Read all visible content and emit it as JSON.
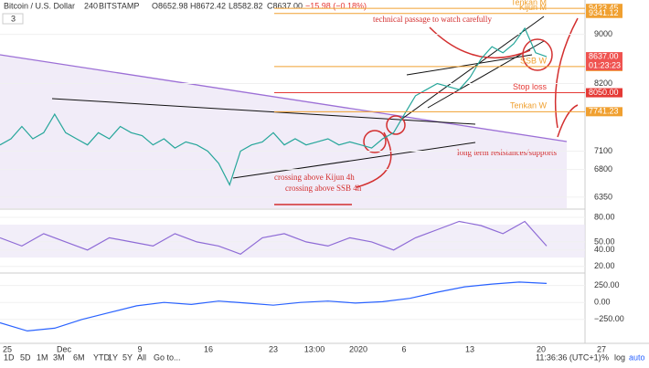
{
  "header": {
    "symbol": "Bitcoin / U.S. Dollar",
    "interval": "240",
    "exchange": "BITSTAMP",
    "open": "O8652.98",
    "high": "H8672.42",
    "low": "L8582.82",
    "close": "C8637.00",
    "change": "−15.98 (−0.18%)",
    "indicator_count": "3"
  },
  "chart_data": [
    {
      "type": "line",
      "series": [
        {
          "name": "BTCUSD",
          "color": "#26a69a",
          "values": [
            7200,
            7300,
            7500,
            7300,
            7400,
            7700,
            7400,
            7300,
            7200,
            7400,
            7300,
            7500,
            7400,
            7350,
            7200,
            7300,
            7150,
            7250,
            7200,
            7100,
            6900,
            6550,
            7100,
            7200,
            7250,
            7400,
            7200,
            7300,
            7200,
            7250,
            7300,
            7200,
            7250,
            7200,
            7150,
            7300,
            7400,
            7700,
            8000,
            8100,
            8200,
            8150,
            8100,
            8300,
            8600,
            8800,
            8700,
            8850,
            9100,
            8700,
            8637
          ]
        }
      ],
      "ylim": [
        6170,
        9560
      ],
      "yticks": [
        6350,
        6800,
        7100,
        8200,
        9000
      ],
      "levels": [
        {
          "name": "Tenkan M",
          "value": 9423.45,
          "color": "#f0a030"
        },
        {
          "name": "Kijun M",
          "value": 9341.12,
          "color": "#f0a030"
        },
        {
          "name": "SSB W",
          "value": 8476.29,
          "color": "#f0a030"
        },
        {
          "name": "Stop loss",
          "value": {
            "value": 8050,
            "label": "8050.00"
          },
          "color": "#e53935"
        },
        {
          "name": "Tenkan W",
          "value": 7741.23,
          "color": "#f0a030"
        }
      ],
      "last_price": {
        "value": 8637,
        "label": "8637.00"
      },
      "countdown": "01:23:23",
      "annotations": [
        "technical passage to watch carefully",
        "crossing above Kijun 4h",
        "crossing above SSB 4h",
        "long term resistances/supports"
      ],
      "x_labels": [
        "25",
        "Dec",
        "9",
        "16",
        "23",
        "13:00",
        "2020",
        "6",
        "13",
        "20",
        "27"
      ]
    },
    {
      "type": "line",
      "series": [
        {
          "name": "RSI",
          "color": "#8e6bd6",
          "values": [
            55,
            45,
            60,
            50,
            40,
            55,
            50,
            45,
            60,
            50,
            45,
            35,
            55,
            60,
            50,
            45,
            55,
            50,
            40,
            55,
            65,
            75,
            70,
            60,
            75,
            45
          ]
        }
      ],
      "ylim": [
        13,
        89
      ],
      "yticks": [
        {
          "value": 20,
          "label": "20.00"
        },
        {
          "value": 40,
          "label": "40.00"
        },
        {
          "value": 50,
          "label": "50.00"
        },
        {
          "value": 80,
          "label": "80.00"
        }
      ]
    },
    {
      "type": "line",
      "series": [
        {
          "name": "MACD",
          "color": "#2962ff",
          "values": [
            -300,
            -420,
            -380,
            -250,
            -150,
            -50,
            0,
            -30,
            20,
            -10,
            -40,
            0,
            20,
            -10,
            10,
            60,
            150,
            230,
            270,
            300,
            280
          ]
        }
      ],
      "ylim": [
        -590,
        420
      ],
      "yticks": [
        {
          "value": 250,
          "label": "250.00"
        },
        {
          "value": 0,
          "label": "0.00"
        },
        {
          "value": -250,
          "label": "−250.00"
        }
      ]
    }
  ],
  "toolbar": {
    "ranges": [
      "1D",
      "5D",
      "1M",
      "3M",
      "6M",
      "YTD",
      "1Y",
      "5Y",
      "All"
    ],
    "goto": "Go to...",
    "clock": "11:36:36 (UTC+1)",
    "percent": "%",
    "log": "log",
    "auto": "auto"
  }
}
